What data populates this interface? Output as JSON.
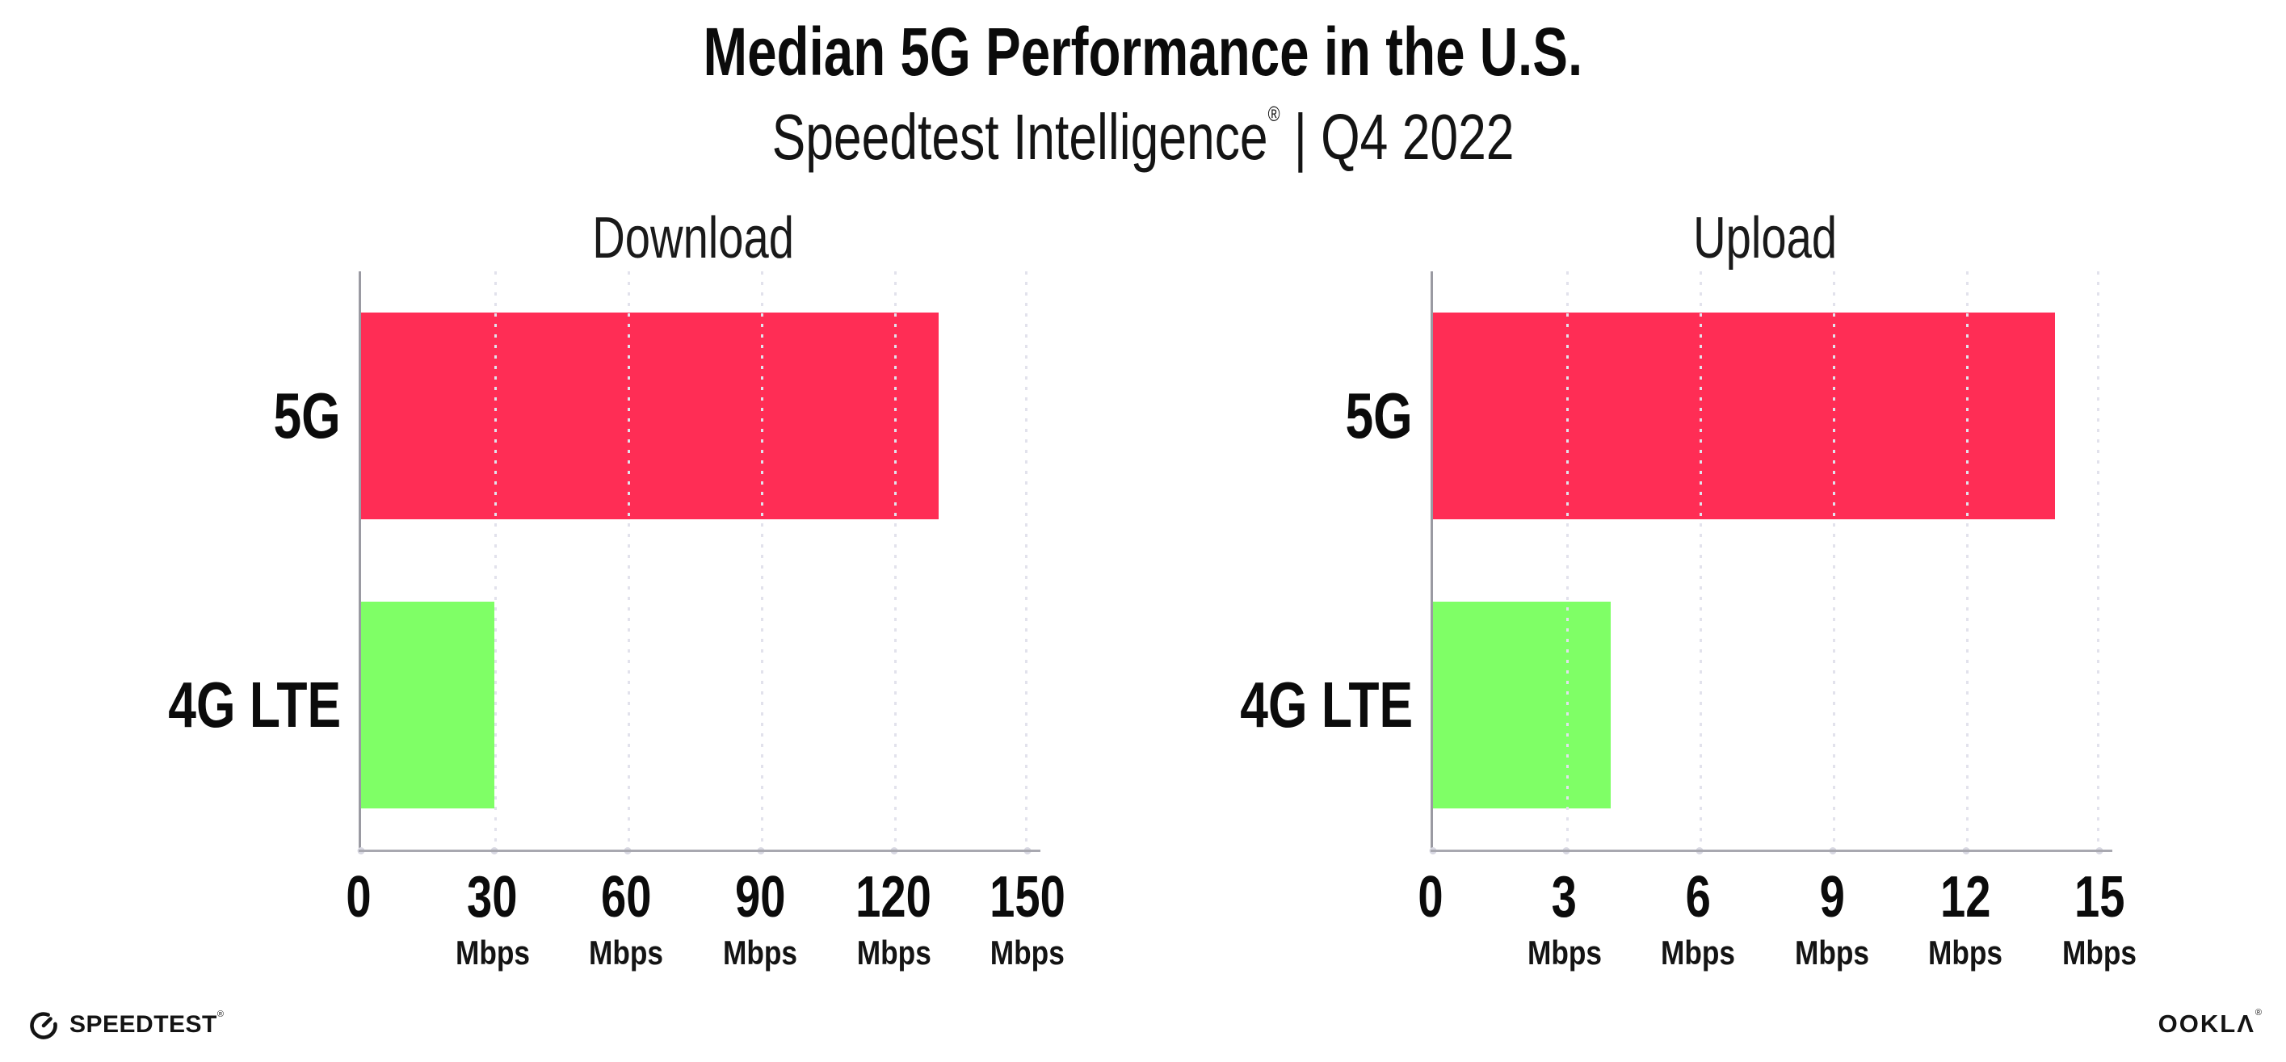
{
  "header": {
    "title": "Median 5G Performance in the U.S.",
    "subtitle": {
      "brand": "Speedtest Intelligence",
      "registered": "®",
      "separator": "|",
      "period": "Q4 2022"
    }
  },
  "chart_data": [
    {
      "type": "bar",
      "orientation": "horizontal",
      "title": "Download",
      "categories": [
        "5G",
        "4G LTE"
      ],
      "values": [
        130,
        30
      ],
      "unit": "Mbps",
      "xlim": [
        0,
        150
      ],
      "xticks": [
        {
          "label": "0",
          "unit": ""
        },
        {
          "label": "30",
          "unit": "Mbps"
        },
        {
          "label": "60",
          "unit": "Mbps"
        },
        {
          "label": "90",
          "unit": "Mbps"
        },
        {
          "label": "120",
          "unit": "Mbps"
        },
        {
          "label": "150",
          "unit": "Mbps"
        }
      ],
      "bar_colors": [
        "#ff2d55",
        "#7fff66"
      ],
      "grid": {
        "vertical_dotted": true,
        "color": "#e2e2ec"
      },
      "legend": "none"
    },
    {
      "type": "bar",
      "orientation": "horizontal",
      "title": "Upload",
      "categories": [
        "5G",
        "4G LTE"
      ],
      "values": [
        14,
        4
      ],
      "unit": "Mbps",
      "xlim": [
        0,
        15
      ],
      "xticks": [
        {
          "label": "0",
          "unit": ""
        },
        {
          "label": "3",
          "unit": "Mbps"
        },
        {
          "label": "6",
          "unit": "Mbps"
        },
        {
          "label": "9",
          "unit": "Mbps"
        },
        {
          "label": "12",
          "unit": "Mbps"
        },
        {
          "label": "15",
          "unit": "Mbps"
        }
      ],
      "bar_colors": [
        "#ff2d55",
        "#7fff66"
      ],
      "grid": {
        "vertical_dotted": true,
        "color": "#e2e2ec"
      },
      "legend": "none"
    }
  ],
  "footer": {
    "speedtest": {
      "label": "SPEEDTEST",
      "registered": "®",
      "icon": "speedtest-gauge-icon"
    },
    "ookla": {
      "label": "OOKLΛ",
      "registered": "®"
    }
  },
  "colors": {
    "bar_5g": "#ff2d55",
    "bar_4g_lte": "#7fff66",
    "axis": "#a8a8b0",
    "grid": "#e2e2ec",
    "text": "#111111"
  }
}
